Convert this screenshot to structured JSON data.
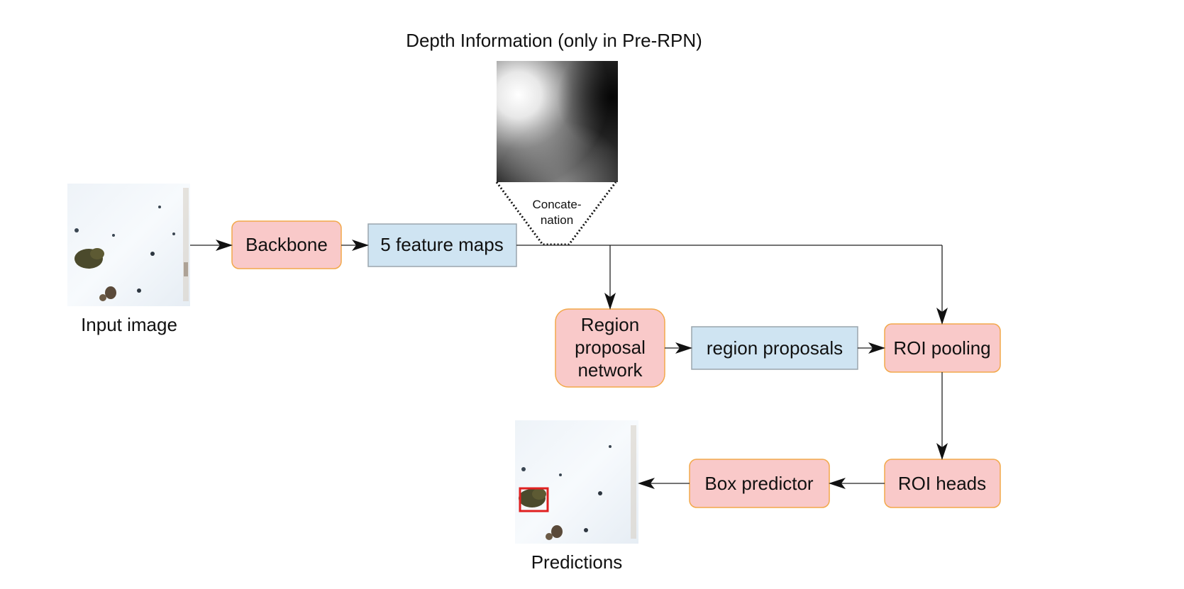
{
  "diagram": {
    "depth_title": "Depth Information (only in Pre-RPN)",
    "concat_label_line1": "Concate-",
    "concat_label_line2": "nation",
    "input_caption": "Input image",
    "predictions_caption": "Predictions",
    "nodes": {
      "backbone": "Backbone",
      "feature_maps": "5 feature maps",
      "rpn_line1": "Region",
      "rpn_line2": "proposal",
      "rpn_line3": "network",
      "region_proposals": "region proposals",
      "roi_pooling": "ROI pooling",
      "roi_heads": "ROI heads",
      "box_predictor": "Box predictor"
    }
  },
  "colors": {
    "process_fill": "#f9c9c9",
    "process_stroke": "#f2a84a",
    "data_fill": "#cfe4f2",
    "data_stroke": "#9aa5ad",
    "arrow": "#222222",
    "detection_box": "#e02020",
    "snow": "#f3f7fb"
  }
}
